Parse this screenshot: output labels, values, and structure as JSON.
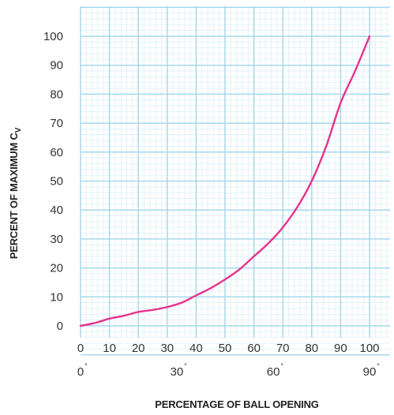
{
  "chart_data": {
    "type": "line",
    "xlabel": "PERCENTAGE OF BALL OPENING",
    "ylabel": "PERCENT OF MAXIMUM C",
    "ylabel_sub": "V",
    "xlim": [
      0,
      100
    ],
    "ylim": [
      0,
      100
    ],
    "x_ticks": [
      "0",
      "10",
      "20",
      "30",
      "40",
      "50",
      "60",
      "70",
      "80",
      "90",
      "100"
    ],
    "y_ticks": [
      "0",
      "10",
      "20",
      "30",
      "40",
      "50",
      "60",
      "70",
      "80",
      "90",
      "100"
    ],
    "secondary_x_ticks": [
      {
        "x": 0,
        "label": "0",
        "mark": "°"
      },
      {
        "x": 33.3,
        "label": "30",
        "mark": "°"
      },
      {
        "x": 66.7,
        "label": "60",
        "mark": "°"
      },
      {
        "x": 100,
        "label": "90",
        "mark": "°"
      }
    ],
    "grid": true,
    "colors": {
      "grid_major": "#a9d8ea",
      "grid_minor": "#e2f2f8",
      "line": "#e8328c"
    },
    "series": [
      {
        "x": [
          0,
          5,
          10,
          15,
          20,
          25,
          30,
          35,
          40,
          45,
          50,
          55,
          60,
          65,
          70,
          75,
          80,
          85,
          90,
          95,
          100
        ],
        "values": [
          0,
          1,
          2.5,
          3.5,
          4.8,
          5.5,
          6.5,
          8,
          10.5,
          13,
          16,
          19.5,
          24,
          28.5,
          34,
          41,
          50,
          62,
          77,
          88,
          100
        ]
      }
    ]
  }
}
